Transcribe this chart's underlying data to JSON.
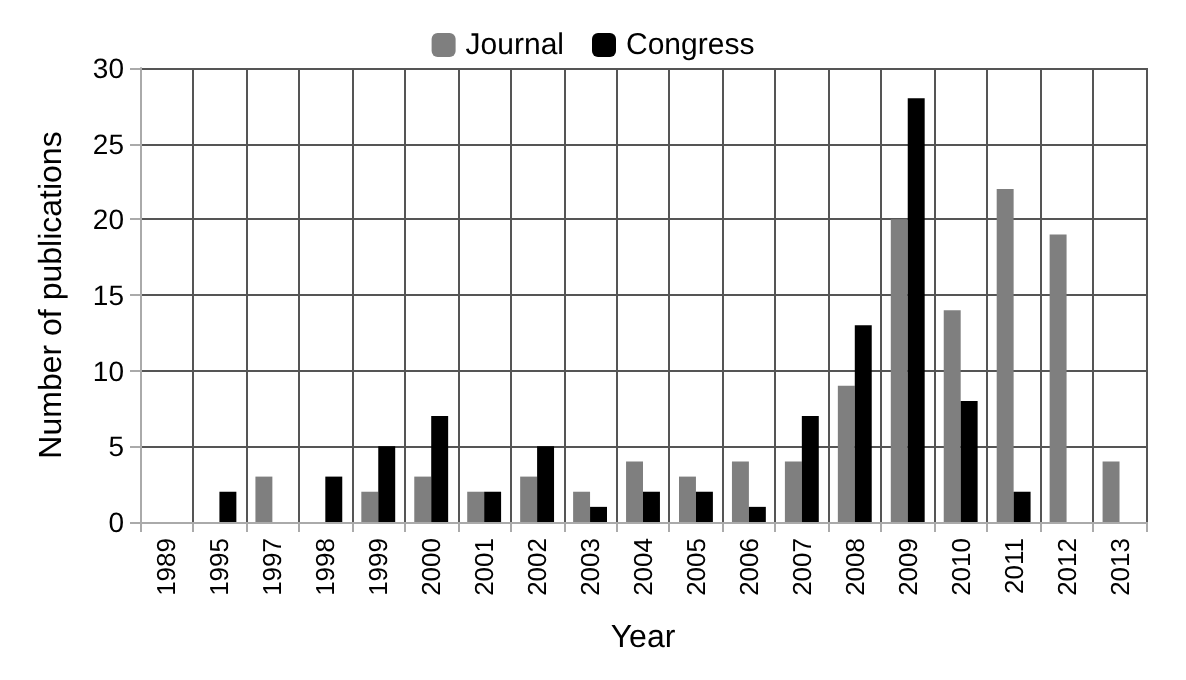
{
  "chart_data": {
    "type": "bar",
    "xlabel": "Year",
    "ylabel": "Number of publications",
    "categories": [
      "1989",
      "1995",
      "1997",
      "1998",
      "1999",
      "2000",
      "2001",
      "2002",
      "2003",
      "2004",
      "2005",
      "2006",
      "2007",
      "2008",
      "2009",
      "2010",
      "2011",
      "2012",
      "2013"
    ],
    "series": [
      {
        "name": "Journal",
        "color": "#7f7f7f",
        "values": [
          0,
          0,
          3,
          0,
          2,
          3,
          2,
          3,
          2,
          4,
          3,
          4,
          4,
          9,
          20,
          14,
          22,
          19,
          4
        ]
      },
      {
        "name": "Congress",
        "color": "#000000",
        "values": [
          0,
          2,
          0,
          3,
          5,
          7,
          2,
          5,
          1,
          2,
          2,
          1,
          7,
          13,
          28,
          8,
          2,
          0,
          0
        ]
      }
    ],
    "ylim": [
      0,
      30
    ],
    "yticks": [
      0,
      5,
      10,
      15,
      20,
      25,
      30
    ],
    "grid": true,
    "legend": "top"
  }
}
